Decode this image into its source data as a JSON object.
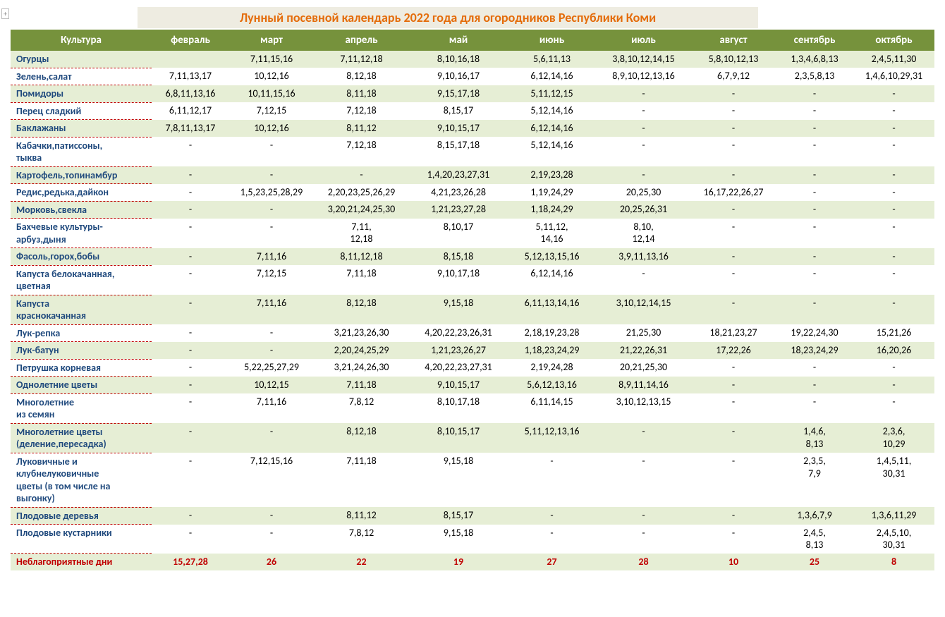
{
  "title": "Лунный посевной календарь 2022 года для огородников Республики Коми",
  "columns": [
    "Культура",
    "февраль",
    "март",
    "апрель",
    "май",
    "июнь",
    "июль",
    "август",
    "сентябрь",
    "октябрь"
  ],
  "col_widths": [
    "200px",
    "110px",
    "120px",
    "135px",
    "140px",
    "125px",
    "135px",
    "120px",
    "110px",
    "115px"
  ],
  "rows": [
    {
      "c": [
        "Огурцы",
        "",
        "7,11,15,16",
        "7,11,12,18",
        "8,10,16,18",
        "5,6,11,13",
        "3,8,10,12,14,15",
        "5,8,10,12,13",
        "1,3,4,6,8,13",
        "2,4,5,11,30"
      ]
    },
    {
      "c": [
        "Зелень,салат",
        "7,11,13,17",
        "10,12,16",
        "8,12,18",
        "9,10,16,17",
        "6,12,14,16",
        "8,9,10,12,13,16",
        "6,7,9,12",
        "2,3,5,8,13",
        "1,4,6,10,29,31"
      ]
    },
    {
      "c": [
        "Помидоры",
        "6,8,11,13,16",
        "10,11,15,16",
        "8,11,18",
        "9,15,17,18",
        "5,11,12,15",
        "-",
        "-",
        "-",
        "-"
      ]
    },
    {
      "c": [
        "Перец сладкий",
        "6,11,12,17",
        "7,12,15",
        "7,12,18",
        "8,15,17",
        "5,12,14,16",
        "-",
        "-",
        "-",
        "-"
      ]
    },
    {
      "c": [
        "Баклажаны",
        "7,8,11,13,17",
        "10,12,16",
        "8,11,12",
        "9,10,15,17",
        "6,12,14,16",
        "-",
        "-",
        "-",
        "-"
      ]
    },
    {
      "c": [
        "Кабачки,патиссоны,\nтыква",
        "-",
        "-",
        "7,12,18",
        "8,15,17,18",
        "5,12,14,16",
        "-",
        "-",
        "-",
        "-"
      ]
    },
    {
      "c": [
        "Картофель,топинамбур",
        "-",
        "-",
        "-",
        "1,4,20,23,27,31",
        "2,19,23,28",
        "-",
        "-",
        "-",
        "-"
      ]
    },
    {
      "c": [
        "Редис,редька,дайкон",
        "-",
        "1,5,23,25,28,29",
        "2,20,23,25,26,29",
        "4,21,23,26,28",
        "1,19,24,29",
        "20,25,30",
        "16,17,22,26,27",
        "-",
        "-"
      ]
    },
    {
      "c": [
        "Морковь,свекла",
        "-",
        "-",
        "3,20,21,24,25,30",
        "1,21,23,27,28",
        "1,18,24,29",
        "20,25,26,31",
        "-",
        "-",
        "-"
      ]
    },
    {
      "c": [
        "Бахчевые культуры-\nарбуз,дыня",
        "-",
        "-",
        "7,11,\n12,18",
        "8,10,17",
        "5,11,12,\n14,16",
        "8,10,\n12,14",
        "-",
        "-",
        "-"
      ]
    },
    {
      "c": [
        "Фасоль,горох,бобы",
        "-",
        "7,11,16",
        "8,11,12,18",
        "8,15,18",
        "5,12,13,15,16",
        "3,9,11,13,16",
        "-",
        "-",
        "-"
      ]
    },
    {
      "c": [
        "Капуста белокачанная,\nцветная",
        "-",
        "7,12,15",
        "7,11,18",
        "9,10,17,18",
        "6,12,14,16",
        "-",
        "-",
        "-",
        "-"
      ]
    },
    {
      "c": [
        "Капуста\nкраснокачанная",
        "-",
        "7,11,16",
        "8,12,18",
        "9,15,18",
        "6,11,13,14,16",
        "3,10,12,14,15",
        "-",
        "-",
        "-"
      ]
    },
    {
      "c": [
        "Лук-репка",
        "-",
        "-",
        "3,21,23,26,30",
        "4,20,22,23,26,31",
        "2,18,19,23,28",
        "21,25,30",
        "18,21,23,27",
        "19,22,24,30",
        "15,21,26"
      ]
    },
    {
      "c": [
        "Лук-батун",
        "-",
        "-",
        "2,20,24,25,29",
        "1,21,23,26,27",
        "1,18,23,24,29",
        "21,22,26,31",
        "17,22,26",
        "18,23,24,29",
        "16,20,26"
      ]
    },
    {
      "c": [
        "Петрушка корневая",
        "-",
        "5,22,25,27,29",
        "3,21,24,26,30",
        "4,20,22,23,27,31",
        "2,19,24,28",
        "20,21,25,30",
        "-",
        "-",
        "-"
      ]
    },
    {
      "c": [
        "Однолетние цветы",
        "-",
        "10,12,15",
        "7,11,18",
        "9,10,15,17",
        "5,6,12,13,16",
        "8,9,11,14,16",
        "-",
        "-",
        "-"
      ]
    },
    {
      "c": [
        "Многолетние\n из семян",
        "-",
        "7,11,16",
        "7,8,12",
        "8,10,17,18",
        "6,11,14,15",
        "3,10,12,13,15",
        "-",
        "-",
        "-"
      ]
    },
    {
      "c": [
        "Многолетние цветы\n(деление,пересадка)",
        "-",
        "-",
        "8,12,18",
        "8,10,15,17",
        "5,11,12,13,16",
        "-",
        "-",
        "1,4,6,\n8,13",
        "2,3,6,\n10,29"
      ]
    },
    {
      "c": [
        "Луковичные и\nклубнелуковичные\nцветы (в том числе на\nвыгонку)",
        "-",
        "7,12,15,16",
        "7,11,18",
        "9,15,18",
        "-",
        "-",
        "-",
        "2,3,5,\n7,9",
        "1,4,5,11,\n30,31"
      ]
    },
    {
      "c": [
        "Плодовые деревья",
        "-",
        "-",
        "8,11,12",
        "8,15,17",
        "-",
        "-",
        "-",
        "1,3,6,7,9",
        "1,3,6,11,29"
      ]
    },
    {
      "c": [
        "Плодовые кустарники",
        "-",
        "-",
        "7,8,12",
        "9,15,18",
        "-",
        "-",
        "-",
        "2,4,5,\n8,13",
        "2,4,5,10,\n30,31"
      ]
    },
    {
      "c": [
        "Неблагоприятные дни",
        "15,27,28",
        "26",
        "22",
        "19",
        "27",
        "28",
        "10",
        "25",
        "8"
      ],
      "bad": true
    }
  ],
  "style": {
    "header_bg": "#76923c",
    "header_fg": "#ffffff",
    "title_bg": "#eeece1",
    "title_fg": "#e46c0a",
    "stripe_bg": "#e6eed5",
    "crop_fg": "#1f497d",
    "bad_fg": "#c00000",
    "font": "Calibri, Arial, sans-serif"
  }
}
